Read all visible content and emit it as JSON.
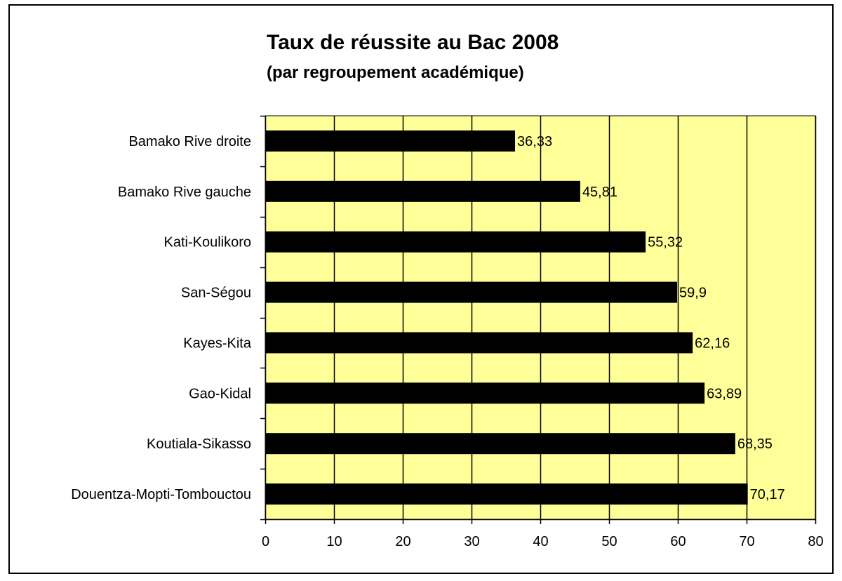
{
  "chart_data": {
    "type": "bar",
    "orientation": "horizontal",
    "title": "Taux de réussite au Bac 2008",
    "subtitle": "(par regroupement académique)",
    "categories": [
      "Bamako Rive droite",
      "Bamako Rive gauche",
      "Kati-Koulikoro",
      "San-Ségou",
      "Kayes-Kita",
      "Gao-Kidal",
      "Koutiala-Sikasso",
      "Douentza-Mopti-Tombouctou"
    ],
    "values": [
      36.33,
      45.81,
      55.32,
      59.9,
      62.16,
      63.89,
      68.35,
      70.17
    ],
    "value_labels": [
      "36,33",
      "45,81",
      "55,32",
      "59,9",
      "62,16",
      "63,89",
      "68,35",
      "70,17"
    ],
    "xlim": [
      0,
      80
    ],
    "xticks": [
      0,
      10,
      20,
      30,
      40,
      50,
      60,
      70,
      80
    ],
    "grid": true,
    "legend": "none",
    "colors": {
      "bar": "#000000",
      "plot_background": "#ffff99",
      "gridline": "#000000"
    }
  }
}
